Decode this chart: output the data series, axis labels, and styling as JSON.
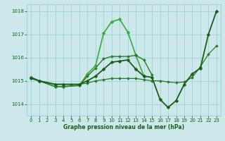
{
  "bg_color": "#cce8eb",
  "grid_color": "#99cdd2",
  "text_color": "#1a5c1a",
  "xlabel": "Graphe pression niveau de la mer (hPa)",
  "ylim": [
    1013.5,
    1018.3
  ],
  "xlim": [
    -0.5,
    23.5
  ],
  "yticks": [
    1014,
    1015,
    1016,
    1017,
    1018
  ],
  "xticks": [
    0,
    1,
    2,
    3,
    4,
    5,
    6,
    7,
    8,
    9,
    10,
    11,
    12,
    13,
    14,
    15,
    16,
    17,
    18,
    19,
    20,
    21,
    22,
    23
  ],
  "series": [
    {
      "x": [
        0,
        1,
        3,
        4,
        6,
        7,
        8,
        9,
        10,
        11,
        12,
        13,
        14
      ],
      "y": [
        1015.1,
        1015.0,
        1014.75,
        1014.75,
        1014.8,
        1015.3,
        1015.65,
        1017.05,
        1017.55,
        1017.65,
        1017.1,
        1016.1,
        1015.2
      ],
      "color": "#3aaa3a",
      "lw": 1.2,
      "marker": "D",
      "ms": 2.5
    },
    {
      "x": [
        0,
        1,
        3,
        4,
        6,
        7,
        8,
        9,
        10,
        11,
        12,
        13,
        14,
        15
      ],
      "y": [
        1015.1,
        1015.0,
        1014.75,
        1014.75,
        1014.8,
        1015.2,
        1015.55,
        1015.95,
        1016.05,
        1016.05,
        1016.05,
        1016.1,
        1015.9,
        1015.25
      ],
      "color": "#2a7a2a",
      "lw": 1.0,
      "marker": "D",
      "ms": 2.0
    },
    {
      "x": [
        0,
        1,
        3,
        4,
        5,
        6,
        7,
        8,
        9,
        10,
        11,
        12,
        13,
        14,
        15,
        16,
        17,
        18,
        19,
        20,
        21,
        22,
        23
      ],
      "y": [
        1015.1,
        1015.0,
        1014.85,
        1014.85,
        1014.85,
        1014.85,
        1014.9,
        1015.0,
        1015.05,
        1015.1,
        1015.1,
        1015.1,
        1015.1,
        1015.05,
        1015.0,
        1015.0,
        1014.95,
        1014.92,
        1014.95,
        1015.15,
        1015.6,
        1016.15,
        1016.5
      ],
      "color": "#2a7a2a",
      "lw": 0.9,
      "marker": "D",
      "ms": 2.0
    },
    {
      "x": [
        0,
        1,
        3,
        4,
        6,
        7,
        8,
        9,
        10,
        11,
        12,
        13,
        14,
        15,
        16,
        17,
        18,
        19,
        20,
        21,
        22,
        23
      ],
      "y": [
        1015.15,
        1015.0,
        1014.85,
        1014.85,
        1014.85,
        1015.0,
        1015.2,
        1015.5,
        1015.8,
        1015.85,
        1015.9,
        1015.5,
        1015.2,
        1015.15,
        1014.2,
        1013.85,
        1014.15,
        1014.85,
        1015.3,
        1015.55,
        1017.0,
        1018.0
      ],
      "color": "#1a5c1a",
      "lw": 1.3,
      "marker": "D",
      "ms": 2.5
    }
  ]
}
